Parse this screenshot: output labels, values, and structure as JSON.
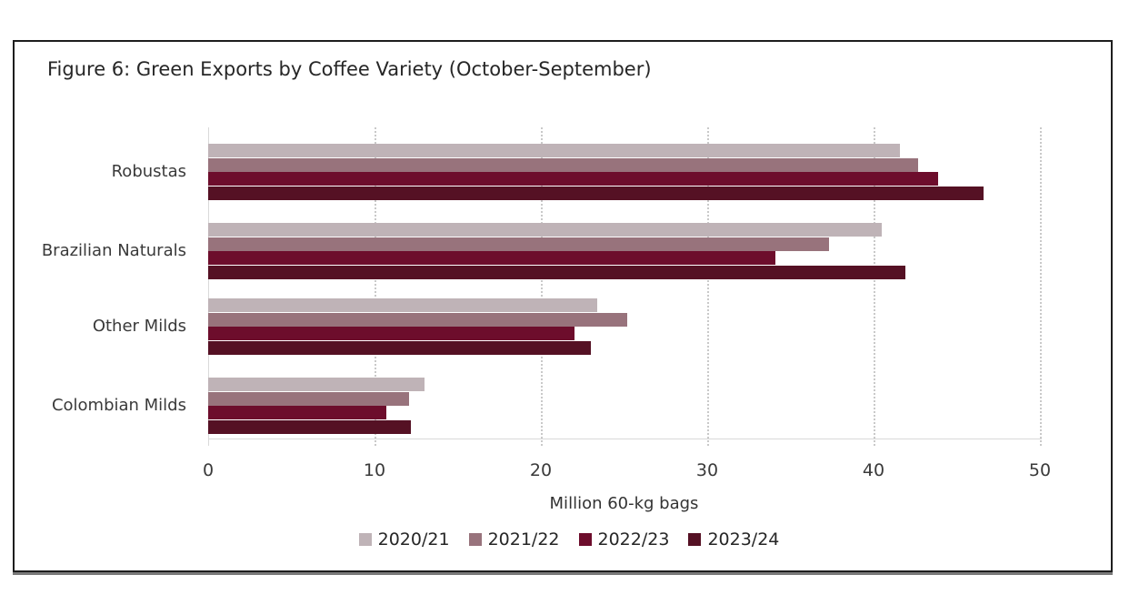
{
  "figure": {
    "title": "Figure 6: Green Exports by Coffee Variety (October-September)"
  },
  "chart_data": {
    "type": "bar",
    "orientation": "horizontal",
    "title": "Figure 6: Green Exports by Coffee Variety (October-September)",
    "categories": [
      "Robustas",
      "Brazilian Naturals",
      "Other Milds",
      "Colombian Milds"
    ],
    "series": [
      {
        "name": "2020/21",
        "color": "#bfb3b7",
        "values": [
          41.6,
          40.5,
          23.4,
          13.0
        ]
      },
      {
        "name": "2021/22",
        "color": "#98737c",
        "values": [
          42.7,
          37.3,
          25.2,
          12.1
        ]
      },
      {
        "name": "2022/23",
        "color": "#6d0d2c",
        "values": [
          43.9,
          34.1,
          22.0,
          10.7
        ]
      },
      {
        "name": "2023/24",
        "color": "#551124",
        "values": [
          46.6,
          41.9,
          23.0,
          12.2
        ]
      }
    ],
    "xlabel": "Million 60-kg bags",
    "xlim": [
      0,
      50
    ],
    "xticks": [
      0,
      10,
      20,
      30,
      40,
      50
    ],
    "grid": "vertical-dotted",
    "legend_position": "bottom",
    "colors": {
      "gridline": "#c9c9c9",
      "axis_line": "#d9d9d9",
      "text": "#3a3a3a",
      "frame_border": "#1e1e1e"
    }
  }
}
